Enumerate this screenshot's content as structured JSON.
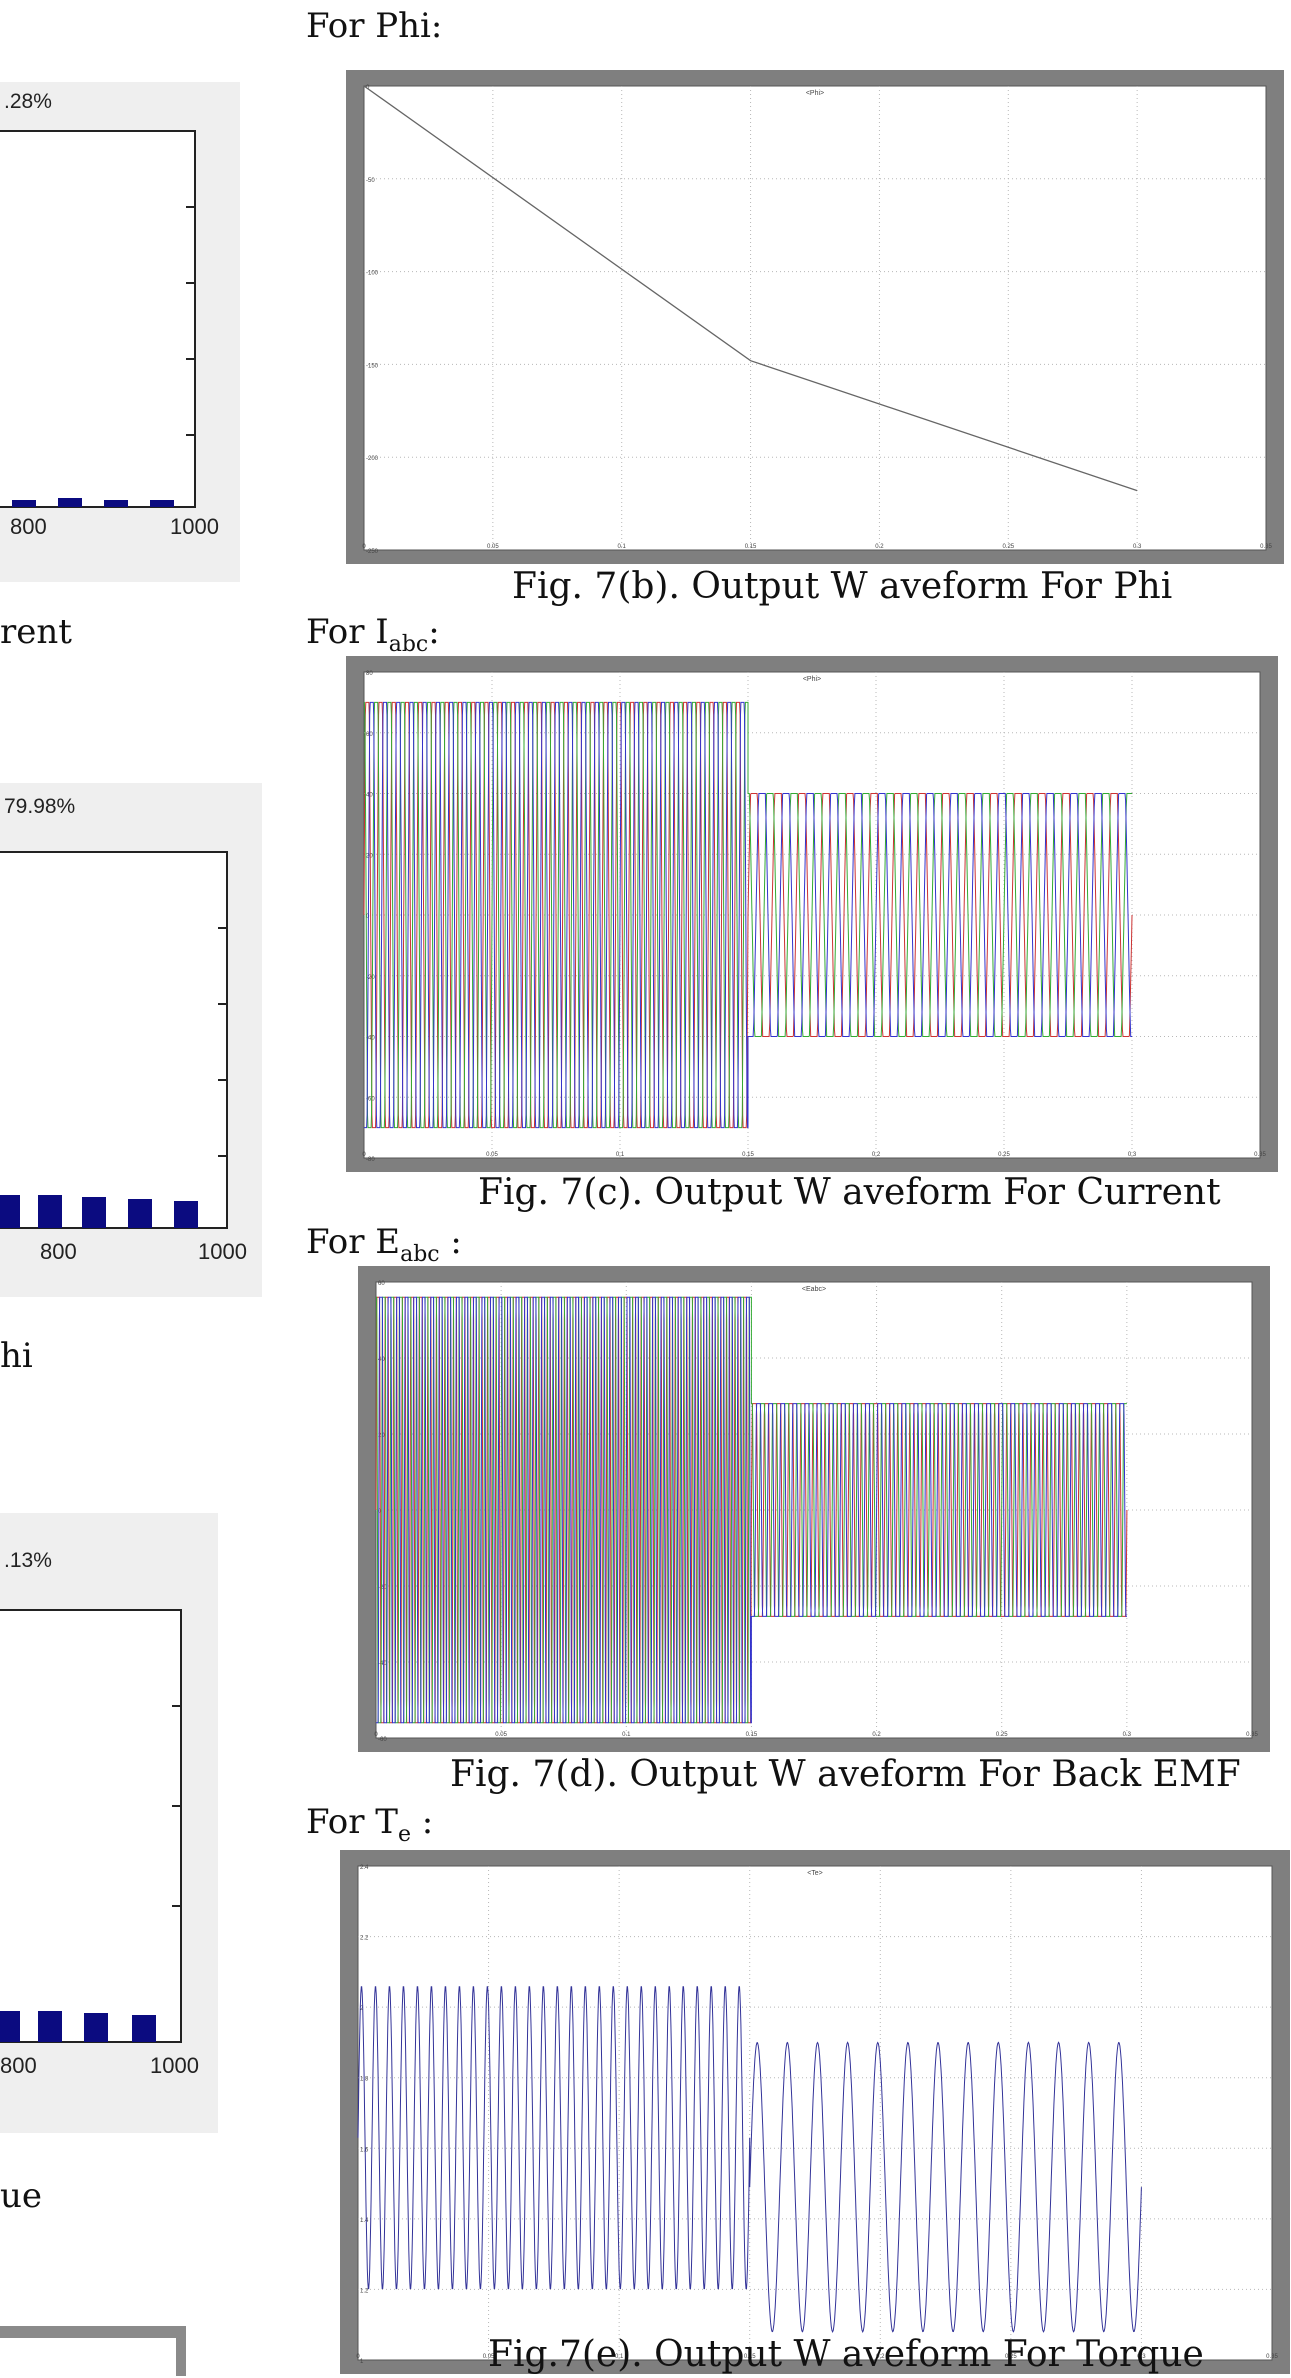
{
  "left_column": {
    "fft_panels": [
      {
        "pct_label": ".28%",
        "x_ticks": [
          "800",
          "1000"
        ],
        "caption_fragment": "rent"
      },
      {
        "pct_label": "79.98%",
        "x_ticks": [
          "800",
          "1000"
        ],
        "caption_fragment": "hi"
      },
      {
        "pct_label": ".13%",
        "x_ticks": [
          "800",
          "1000"
        ],
        "caption_fragment": "ue"
      }
    ]
  },
  "figures": [
    {
      "heading_prefix": "For Phi:",
      "heading_sub": "",
      "heading_suffix": "",
      "scope_title": "<Phi>",
      "caption": "Fig. 7(b). Output W aveform For Phi",
      "y_ticks": [
        "0",
        "-50",
        "-100",
        "-150",
        "-200",
        "-250"
      ],
      "x_ticks": [
        "0",
        "0.05",
        "0.1",
        "0.15",
        "0.2",
        "0.25",
        "0.3",
        "0.35"
      ]
    },
    {
      "heading_prefix": "For I",
      "heading_sub": "abc",
      "heading_suffix": ":",
      "scope_title": "<Phi>",
      "caption": "Fig. 7(c). Output W aveform For Current",
      "y_ticks": [
        "80",
        "60",
        "40",
        "20",
        "0",
        "-20",
        "-40",
        "-60",
        "-80"
      ],
      "x_ticks": [
        "0",
        "0.05",
        "0.1",
        "0.15",
        "0.2",
        "0.25",
        "0.3",
        "0.35"
      ]
    },
    {
      "heading_prefix": "For E",
      "heading_sub": "abc",
      "heading_suffix": " :",
      "scope_title": "<Eabc>",
      "caption": "Fig. 7(d). Output W aveform For Back EMF",
      "y_ticks": [
        "60",
        "40",
        "20",
        "0",
        "-20",
        "-40",
        "-60"
      ],
      "x_ticks": [
        "0",
        "0.05",
        "0.1",
        "0.15",
        "0.2",
        "0.25",
        "0.3",
        "0.35"
      ]
    },
    {
      "heading_prefix": "For T",
      "heading_sub": "e",
      "heading_suffix": " :",
      "scope_title": "<Te>",
      "caption": "Fig.7(e). Output W aveform For Torque",
      "y_ticks": [
        "2.4",
        "2.2",
        "2",
        "1.8",
        "1.6",
        "1.4",
        "1.2",
        "1"
      ],
      "x_ticks": [
        "0",
        "0.05",
        "0.1",
        "0.15",
        "0.2",
        "0.25",
        "0.3",
        "0.35"
      ]
    }
  ],
  "chart_data": [
    {
      "type": "line",
      "title": "<Phi>",
      "x": [
        0,
        0.15,
        0.3
      ],
      "y": [
        0,
        -148,
        -218
      ],
      "xlim": [
        0,
        0.35
      ],
      "ylim": [
        -250,
        0
      ],
      "grid": true
    },
    {
      "type": "line",
      "title": "<Phi>",
      "xlim": [
        0,
        0.35
      ],
      "ylim": [
        -80,
        80
      ],
      "grid": true,
      "series": [
        {
          "segments": [
            {
              "x_range": [
                0,
                0.15
              ],
              "min": -70,
              "max": 70
            },
            {
              "x_range": [
                0.15,
                0.3
              ],
              "min": -40,
              "max": 40
            }
          ]
        },
        {
          "segments": [
            {
              "x_range": [
                0,
                0.15
              ],
              "min": -70,
              "max": 70
            },
            {
              "x_range": [
                0.15,
                0.3
              ],
              "min": -40,
              "max": 40
            }
          ]
        },
        {
          "segments": [
            {
              "x_range": [
                0,
                0.15
              ],
              "min": -70,
              "max": 70
            },
            {
              "x_range": [
                0.15,
                0.3
              ],
              "min": -40,
              "max": 40
            }
          ]
        }
      ]
    },
    {
      "type": "line",
      "title": "<Eabc>",
      "xlim": [
        0,
        0.35
      ],
      "ylim": [
        -60,
        60
      ],
      "grid": true,
      "series": [
        {
          "segments": [
            {
              "x_range": [
                0,
                0.15
              ],
              "min": -56,
              "max": 56
            },
            {
              "x_range": [
                0.15,
                0.3
              ],
              "min": -28,
              "max": 28
            }
          ]
        },
        {
          "segments": [
            {
              "x_range": [
                0,
                0.15
              ],
              "min": -56,
              "max": 56
            },
            {
              "x_range": [
                0.15,
                0.3
              ],
              "min": -28,
              "max": 28
            }
          ]
        },
        {
          "segments": [
            {
              "x_range": [
                0,
                0.15
              ],
              "min": -56,
              "max": 56
            },
            {
              "x_range": [
                0.15,
                0.3
              ],
              "min": -28,
              "max": 28
            }
          ]
        }
      ]
    },
    {
      "type": "line",
      "title": "<Te>",
      "xlim": [
        0,
        0.35
      ],
      "ylim": [
        1,
        2.4
      ],
      "grid": true,
      "series": [
        {
          "segments": [
            {
              "x_range": [
                0,
                0.15
              ],
              "min": 1.2,
              "max": 2.06
            },
            {
              "x_range": [
                0.15,
                0.3
              ],
              "min": 1.08,
              "max": 1.9
            }
          ]
        }
      ]
    }
  ],
  "colors": {
    "scope_frame": "#7f7f7f",
    "fft_bar": "#0b0b80",
    "phase_a": "#cc3333",
    "phase_b": "#33aa33",
    "phase_c": "#3333cc",
    "torque": "#333399"
  }
}
